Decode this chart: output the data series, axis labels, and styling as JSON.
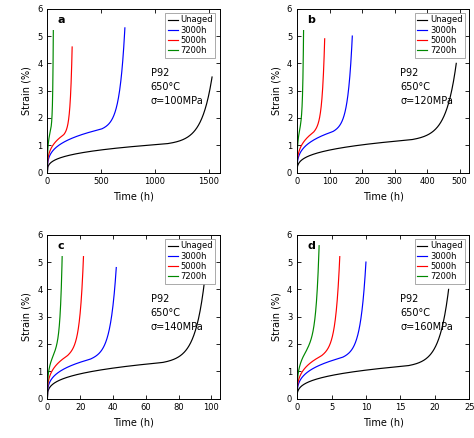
{
  "panels": [
    {
      "label": "a",
      "stress": "σ=100MPa",
      "xlim": [
        0,
        1600
      ],
      "xticks": [
        0,
        500,
        1000,
        1500
      ],
      "curves": [
        {
          "key": "unaged",
          "t_end": 1530,
          "t_flat": 1100,
          "color": "#000000",
          "max_strain": 3.5
        },
        {
          "key": "3000h",
          "t_end": 720,
          "t_flat": 500,
          "color": "#0000ff",
          "max_strain": 5.3
        },
        {
          "key": "5000h",
          "t_end": 230,
          "t_flat": 150,
          "color": "#ff0000",
          "max_strain": 4.6
        },
        {
          "key": "7200h",
          "t_end": 55,
          "t_flat": 30,
          "color": "#008800",
          "max_strain": 5.2
        }
      ]
    },
    {
      "label": "b",
      "stress": "σ=120MPa",
      "xlim": [
        0,
        530
      ],
      "xticks": [
        0,
        100,
        200,
        300,
        400,
        500
      ],
      "curves": [
        {
          "key": "unaged",
          "t_end": 490,
          "t_flat": 350,
          "color": "#000000",
          "max_strain": 4.0
        },
        {
          "key": "3000h",
          "t_end": 170,
          "t_flat": 110,
          "color": "#0000ff",
          "max_strain": 5.0
        },
        {
          "key": "5000h",
          "t_end": 85,
          "t_flat": 50,
          "color": "#ff0000",
          "max_strain": 4.9
        },
        {
          "key": "7200h",
          "t_end": 20,
          "t_flat": 8,
          "color": "#008800",
          "max_strain": 5.2
        }
      ]
    },
    {
      "label": "c",
      "stress": "σ=140MPa",
      "xlim": [
        0,
        105
      ],
      "xticks": [
        0,
        20,
        40,
        60,
        80,
        100
      ],
      "curves": [
        {
          "key": "unaged",
          "t_end": 96,
          "t_flat": 70,
          "color": "#000000",
          "max_strain": 4.4
        },
        {
          "key": "3000h",
          "t_end": 42,
          "t_flat": 26,
          "color": "#0000ff",
          "max_strain": 4.8
        },
        {
          "key": "5000h",
          "t_end": 22,
          "t_flat": 12,
          "color": "#ff0000",
          "max_strain": 5.2
        },
        {
          "key": "7200h",
          "t_end": 9,
          "t_flat": 3.5,
          "color": "#008800",
          "max_strain": 5.2
        }
      ]
    },
    {
      "label": "d",
      "stress": "σ=160MPa",
      "xlim": [
        0,
        25
      ],
      "xticks": [
        0,
        5,
        10,
        15,
        20,
        25
      ],
      "curves": [
        {
          "key": "unaged",
          "t_end": 22,
          "t_flat": 16,
          "color": "#000000",
          "max_strain": 4.0
        },
        {
          "key": "3000h",
          "t_end": 10,
          "t_flat": 6.5,
          "color": "#0000ff",
          "max_strain": 5.0
        },
        {
          "key": "5000h",
          "t_end": 6.2,
          "t_flat": 3.5,
          "color": "#ff0000",
          "max_strain": 5.2
        },
        {
          "key": "7200h",
          "t_end": 3.2,
          "t_flat": 1.2,
          "color": "#008800",
          "max_strain": 5.6
        }
      ]
    }
  ],
  "ylim": [
    0,
    6
  ],
  "yticks": [
    0,
    1,
    2,
    3,
    4,
    5,
    6
  ],
  "ylabel": "Strain (%)",
  "xlabel": "Time (h)",
  "annotation_line1": "P92",
  "annotation_line2": "650°C",
  "legend_labels": [
    "Unaged",
    "3000h",
    "5000h",
    "7200h"
  ],
  "legend_colors": [
    "#000000",
    "#0000ff",
    "#ff0000",
    "#008800"
  ],
  "background_color": "#ffffff",
  "font_size": 7,
  "label_font_size": 8
}
